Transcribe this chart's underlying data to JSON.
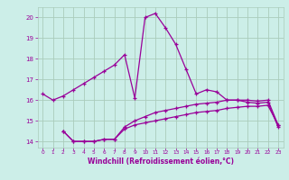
{
  "background_color": "#cceee8",
  "grid_color": "#aaccbb",
  "line_color": "#990099",
  "xlabel": "Windchill (Refroidissement éolien,°C)",
  "xlabel_color": "#990099",
  "xlim": [
    -0.5,
    23.5
  ],
  "ylim": [
    13.7,
    20.5
  ],
  "yticks": [
    14,
    15,
    16,
    17,
    18,
    19,
    20
  ],
  "xticks": [
    0,
    1,
    2,
    3,
    4,
    5,
    6,
    7,
    8,
    9,
    10,
    11,
    12,
    13,
    14,
    15,
    16,
    17,
    18,
    19,
    20,
    21,
    22,
    23
  ],
  "line1_x": [
    0,
    1,
    2,
    3,
    4,
    5,
    6,
    7,
    8,
    9,
    10,
    11,
    12,
    13,
    14,
    15,
    16,
    17,
    18,
    19,
    20,
    21,
    22,
    23
  ],
  "line1_y": [
    16.3,
    16.0,
    16.2,
    16.5,
    16.8,
    17.1,
    17.4,
    17.7,
    18.2,
    16.1,
    20.0,
    20.2,
    19.5,
    18.7,
    17.5,
    16.3,
    16.5,
    16.4,
    16.0,
    16.0,
    15.9,
    15.85,
    15.9,
    14.7
  ],
  "line2_x": [
    2,
    3,
    4,
    5,
    6,
    7,
    8,
    9,
    10,
    11,
    12,
    13,
    14,
    15,
    16,
    17,
    18,
    19,
    20,
    21,
    22,
    23
  ],
  "line2_y": [
    14.5,
    14.0,
    14.0,
    14.0,
    14.1,
    14.1,
    14.7,
    15.0,
    15.2,
    15.4,
    15.5,
    15.6,
    15.7,
    15.8,
    15.85,
    15.9,
    16.0,
    16.0,
    16.0,
    15.95,
    16.0,
    14.8
  ],
  "line3_x": [
    2,
    3,
    4,
    5,
    6,
    7,
    8,
    9,
    10,
    11,
    12,
    13,
    14,
    15,
    16,
    17,
    18,
    19,
    20,
    21,
    22,
    23
  ],
  "line3_y": [
    14.5,
    14.0,
    14.0,
    14.0,
    14.1,
    14.1,
    14.6,
    14.8,
    14.9,
    15.0,
    15.1,
    15.2,
    15.3,
    15.4,
    15.45,
    15.5,
    15.6,
    15.65,
    15.7,
    15.7,
    15.75,
    14.8
  ]
}
